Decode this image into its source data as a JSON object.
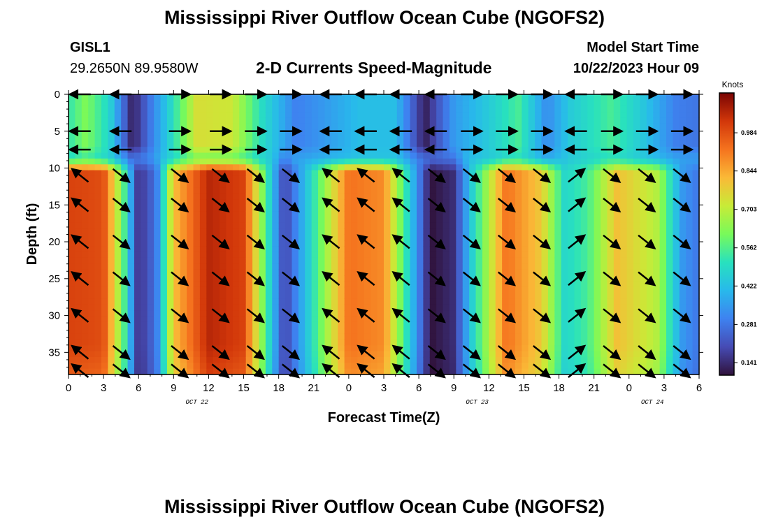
{
  "header": {
    "title": "Mississippi River Outflow Ocean Cube (NGOFS2)",
    "station_id": "GISL1",
    "station_coords": "29.2650N  89.9580W",
    "plot_subtitle": "2-D Currents Speed-Magnitude",
    "model_start_label": "Model Start Time",
    "model_start_value": "10/22/2023 Hour 09"
  },
  "footer": {
    "title": "Mississippi River Outflow Ocean Cube (NGOFS2)"
  },
  "chart_data": {
    "type": "heatmap",
    "xlabel": "Forecast Time(Z)",
    "ylabel": "Depth (ft)",
    "x_tick_labels": [
      "0",
      "3",
      "6",
      "9",
      "12",
      "15",
      "18",
      "21",
      "0",
      "3",
      "6",
      "9",
      "12",
      "15",
      "18",
      "21",
      "0",
      "3",
      "6"
    ],
    "date_labels": [
      {
        "text": "OCT 22",
        "hour": 11
      },
      {
        "text": "OCT 23",
        "hour": 35
      },
      {
        "text": "OCT 24",
        "hour": 50
      }
    ],
    "x_range_hours": [
      0,
      54
    ],
    "y_tick_labels": [
      "0",
      "5",
      "10",
      "15",
      "20",
      "25",
      "30",
      "35"
    ],
    "y_range_ft": [
      0,
      38
    ],
    "colorbar": {
      "unit": "Knots",
      "tick_labels": [
        "0.141",
        "0.281",
        "0.422",
        "0.562",
        "0.703",
        "0.844",
        "0.984"
      ],
      "range": [
        0.1,
        1.12
      ]
    },
    "surface_layer_speed_knots": [
      {
        "hour": 0,
        "value": 0.52
      },
      {
        "hour": 1.5,
        "value": 0.62
      },
      {
        "hour": 3.5,
        "value": 0.48
      },
      {
        "hour": 5.5,
        "value": 0.12
      },
      {
        "hour": 8.5,
        "value": 0.45
      },
      {
        "hour": 11,
        "value": 0.74
      },
      {
        "hour": 14,
        "value": 0.72
      },
      {
        "hour": 16.5,
        "value": 0.5
      },
      {
        "hour": 19.5,
        "value": 0.3
      },
      {
        "hour": 22,
        "value": 0.35
      },
      {
        "hour": 25,
        "value": 0.42
      },
      {
        "hour": 28,
        "value": 0.42
      },
      {
        "hour": 30.5,
        "value": 0.12
      },
      {
        "hour": 33,
        "value": 0.35
      },
      {
        "hour": 36,
        "value": 0.45
      },
      {
        "hour": 38.5,
        "value": 0.55
      },
      {
        "hour": 41,
        "value": 0.32
      },
      {
        "hour": 43,
        "value": 0.45
      },
      {
        "hour": 46.5,
        "value": 0.55
      },
      {
        "hour": 49,
        "value": 0.45
      },
      {
        "hour": 52,
        "value": 0.3
      },
      {
        "hour": 54,
        "value": 0.28
      }
    ],
    "lower_layer_speed_knots": [
      {
        "hour": 0,
        "value": 1.0
      },
      {
        "hour": 3,
        "value": 0.98
      },
      {
        "hour": 4.8,
        "value": 0.55
      },
      {
        "hour": 6,
        "value": 0.15
      },
      {
        "hour": 7.5,
        "value": 0.28
      },
      {
        "hour": 9,
        "value": 0.8
      },
      {
        "hour": 12,
        "value": 1.05
      },
      {
        "hour": 15,
        "value": 1.0
      },
      {
        "hour": 16.7,
        "value": 0.6
      },
      {
        "hour": 18.5,
        "value": 0.18
      },
      {
        "hour": 20.5,
        "value": 0.45
      },
      {
        "hour": 24,
        "value": 0.92
      },
      {
        "hour": 27,
        "value": 0.88
      },
      {
        "hour": 29,
        "value": 0.5
      },
      {
        "hour": 31,
        "value": 0.1
      },
      {
        "hour": 33,
        "value": 0.15
      },
      {
        "hour": 34.5,
        "value": 0.45
      },
      {
        "hour": 37.5,
        "value": 0.92
      },
      {
        "hour": 40.5,
        "value": 0.78
      },
      {
        "hour": 42.5,
        "value": 0.48
      },
      {
        "hour": 44.5,
        "value": 0.55
      },
      {
        "hour": 47,
        "value": 0.8
      },
      {
        "hour": 50.5,
        "value": 0.68
      },
      {
        "hour": 52.5,
        "value": 0.35
      },
      {
        "hour": 54,
        "value": 0.28
      }
    ],
    "arrow_rows_ft": [
      0,
      5,
      7.5,
      11,
      15,
      20,
      25,
      30,
      35,
      37.5
    ],
    "arrow_columns_hours": [
      1,
      4.5,
      9.5,
      13,
      16,
      19,
      22.5,
      25.5,
      28.5,
      31.5,
      34.5,
      37.5,
      40.5,
      43.5,
      46.5,
      49.5,
      52.5
    ],
    "arrow_directions": [
      {
        "hour_from": 0,
        "hour_to": 4.5,
        "deep": "northwest",
        "surface": "west"
      },
      {
        "hour_from": 4.5,
        "hour_to": 7,
        "deep": "southeast",
        "surface": "west"
      },
      {
        "hour_from": 7,
        "hour_to": 17,
        "deep": "southeast",
        "surface": "east"
      },
      {
        "hour_from": 17,
        "hour_to": 21,
        "deep": "southeast",
        "surface": "east"
      },
      {
        "hour_from": 21,
        "hour_to": 30,
        "deep": "northwest",
        "surface": "west"
      },
      {
        "hour_from": 30,
        "hour_to": 33,
        "deep": "southeast",
        "surface": "west"
      },
      {
        "hour_from": 33,
        "hour_to": 42,
        "deep": "southeast",
        "surface": "east"
      },
      {
        "hour_from": 42,
        "hour_to": 45,
        "deep": "northeast",
        "surface": "west"
      },
      {
        "hour_from": 45,
        "hour_to": 54,
        "deep": "southeast",
        "surface": "east"
      }
    ]
  }
}
